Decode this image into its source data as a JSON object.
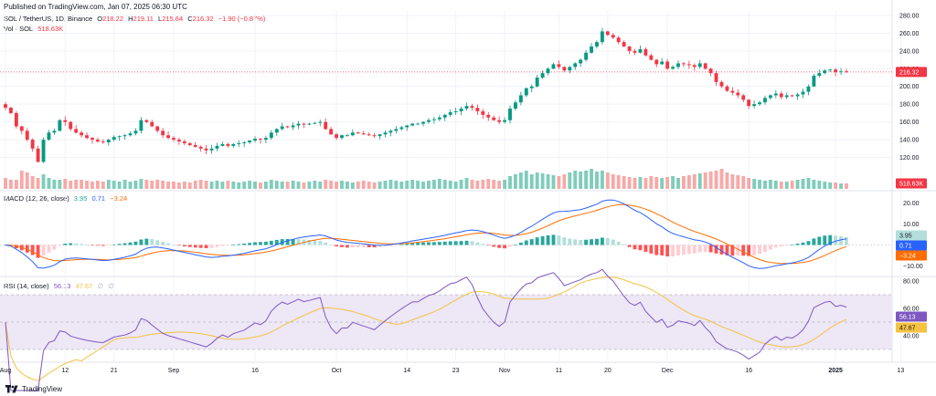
{
  "header": {
    "published": "Published on TradingView.com, Jan 07, 2025 06:30 UTC"
  },
  "legend": {
    "symbol": "SOL / TetherUS, 1D, Binance",
    "o_label": "O",
    "o": "218.22",
    "h_label": "H",
    "h": "219.11",
    "l_label": "L",
    "l": "215.64",
    "c_label": "C",
    "c": "216.32",
    "change": "−1.90 (−0.87%)",
    "vol_label": "Vol · SOL",
    "vol": "518.63K"
  },
  "macd_legend": {
    "label": "MACD (12, 26, close)",
    "hist": "3.95",
    "macd": "0.71",
    "signal": "−3.24"
  },
  "rsi_legend": {
    "label": "RSI (14, close)",
    "rsi": "56.13",
    "ma": "47.67",
    "extra1": "∅",
    "extra2": "∅"
  },
  "badges": {
    "price": "216.32",
    "volume": "518.63K",
    "macd_hist": "3.95",
    "macd": "0.71",
    "macd_signal": "−3.24",
    "rsi": "56.13",
    "rsi_ma": "47.67"
  },
  "footer": {
    "brand": "TradingView"
  },
  "colors": {
    "up": "#089981",
    "down": "#f23645",
    "up_vol": "#7fcdbb",
    "down_vol": "#f7a9a7",
    "macd_line": "#2962ff",
    "signal_line": "#ff6d00",
    "rsi_line": "#7e57c2",
    "rsi_ma": "#f5c242",
    "rsi_band": "#ede7f6"
  },
  "chart_data": [
    {
      "type": "candlestick",
      "title": "SOL / TetherUS, 1D, Binance",
      "x_tick_labels": [
        "Aug",
        "12",
        "21",
        "Sep",
        "16",
        "Oct",
        "14",
        "23",
        "Nov",
        "11",
        "20",
        "Dec",
        "16",
        "2025",
        "13"
      ],
      "x_tick_day_index": [
        0,
        11,
        20,
        31,
        46,
        61,
        74,
        83,
        92,
        102,
        111,
        122,
        137,
        153,
        165
      ],
      "y_ticks": [
        120,
        140,
        160,
        180,
        200,
        220,
        240,
        260,
        280
      ],
      "ylim": [
        100,
        283
      ],
      "current_price": 216.32,
      "close_by_day": [
        176,
        170,
        155,
        150,
        140,
        130,
        115,
        140,
        148,
        150,
        162,
        160,
        152,
        148,
        145,
        142,
        140,
        138,
        137,
        140,
        143,
        144,
        145,
        147,
        150,
        162,
        160,
        155,
        150,
        145,
        142,
        140,
        138,
        136,
        134,
        132,
        130,
        128,
        130,
        133,
        135,
        133,
        135,
        136,
        137,
        139,
        141,
        140,
        142,
        148,
        152,
        155,
        154,
        156,
        158,
        157,
        158,
        159,
        160,
        152,
        146,
        142,
        145,
        145,
        148,
        147,
        146,
        145,
        144,
        146,
        148,
        150,
        152,
        154,
        156,
        158,
        158,
        160,
        162,
        163,
        165,
        168,
        171,
        172,
        175,
        178,
        176,
        172,
        168,
        165,
        162,
        160,
        162,
        175,
        182,
        190,
        198,
        200,
        210,
        215,
        220,
        225,
        222,
        218,
        222,
        226,
        230,
        238,
        245,
        250,
        262,
        258,
        255,
        250,
        245,
        240,
        238,
        242,
        235,
        230,
        225,
        228,
        220,
        222,
        226,
        225,
        224,
        222,
        226,
        220,
        215,
        205,
        200,
        195,
        193,
        190,
        185,
        178,
        180,
        182,
        187,
        190,
        192,
        188,
        190,
        189,
        191,
        194,
        200,
        212,
        215,
        218,
        219,
        216,
        217,
        216
      ]
    },
    {
      "type": "bar",
      "title": "Vol · SOL",
      "last_value": "518.63K",
      "relative_volume_by_day": [
        0.6,
        0.5,
        0.5,
        1.0,
        0.9,
        0.7,
        0.6,
        0.8,
        0.6,
        0.5,
        0.5,
        0.55,
        0.45,
        0.5,
        0.5,
        0.45,
        0.4,
        0.45,
        0.4,
        0.5,
        0.45,
        0.4,
        0.5,
        0.4,
        0.45,
        0.55,
        0.5,
        0.45,
        0.5,
        0.45,
        0.4,
        0.4,
        0.35,
        0.4,
        0.35,
        0.45,
        0.5,
        0.45,
        0.4,
        0.45,
        0.4,
        0.45,
        0.4,
        0.35,
        0.4,
        0.45,
        0.4,
        0.35,
        0.4,
        0.5,
        0.45,
        0.4,
        0.4,
        0.45,
        0.4,
        0.35,
        0.4,
        0.45,
        0.4,
        0.5,
        0.45,
        0.4,
        0.45,
        0.4,
        0.35,
        0.4,
        0.45,
        0.4,
        0.35,
        0.4,
        0.45,
        0.5,
        0.45,
        0.4,
        0.45,
        0.5,
        0.45,
        0.4,
        0.45,
        0.5,
        0.55,
        0.5,
        0.45,
        0.4,
        0.5,
        0.6,
        0.5,
        0.45,
        0.5,
        0.55,
        0.5,
        0.45,
        0.5,
        0.7,
        0.8,
        0.9,
        1.0,
        0.8,
        0.9,
        0.85,
        0.8,
        0.75,
        0.7,
        0.8,
        0.9,
        1.0,
        0.95,
        1.0,
        1.1,
        0.95,
        1.0,
        0.9,
        0.8,
        0.75,
        0.7,
        0.65,
        0.6,
        0.65,
        0.6,
        0.7,
        0.65,
        0.6,
        0.65,
        0.7,
        0.6,
        0.7,
        0.75,
        0.8,
        0.85,
        0.9,
        0.95,
        1.0,
        1.1,
        0.9,
        0.8,
        0.75,
        0.7,
        0.6,
        0.55,
        0.5,
        0.45,
        0.5,
        0.45,
        0.4,
        0.4,
        0.45,
        0.5,
        0.55,
        0.6,
        0.5,
        0.45,
        0.4,
        0.35,
        0.35,
        0.3,
        0.3
      ]
    },
    {
      "type": "line",
      "title": "MACD (12, 26, close)",
      "y_ticks": [
        20,
        10,
        -10
      ],
      "ylim": [
        -15,
        25
      ],
      "series": [
        {
          "name": "MACD",
          "color": "#2962ff"
        },
        {
          "name": "Signal",
          "color": "#ff6d00"
        },
        {
          "name": "Histogram",
          "type": "bar"
        }
      ],
      "last_values": {
        "histogram": 3.95,
        "macd": 0.71,
        "signal": -3.24
      }
    },
    {
      "type": "line",
      "title": "RSI (14, close)",
      "y_ticks": [
        80,
        60,
        40
      ],
      "ylim": [
        22,
        82
      ],
      "bands": [
        70,
        50,
        30
      ],
      "series": [
        {
          "name": "RSI",
          "color": "#7e57c2"
        },
        {
          "name": "RSI-based MA",
          "color": "#f5c242"
        }
      ],
      "last_values": {
        "rsi": 56.13,
        "ma": 47.67
      }
    }
  ]
}
